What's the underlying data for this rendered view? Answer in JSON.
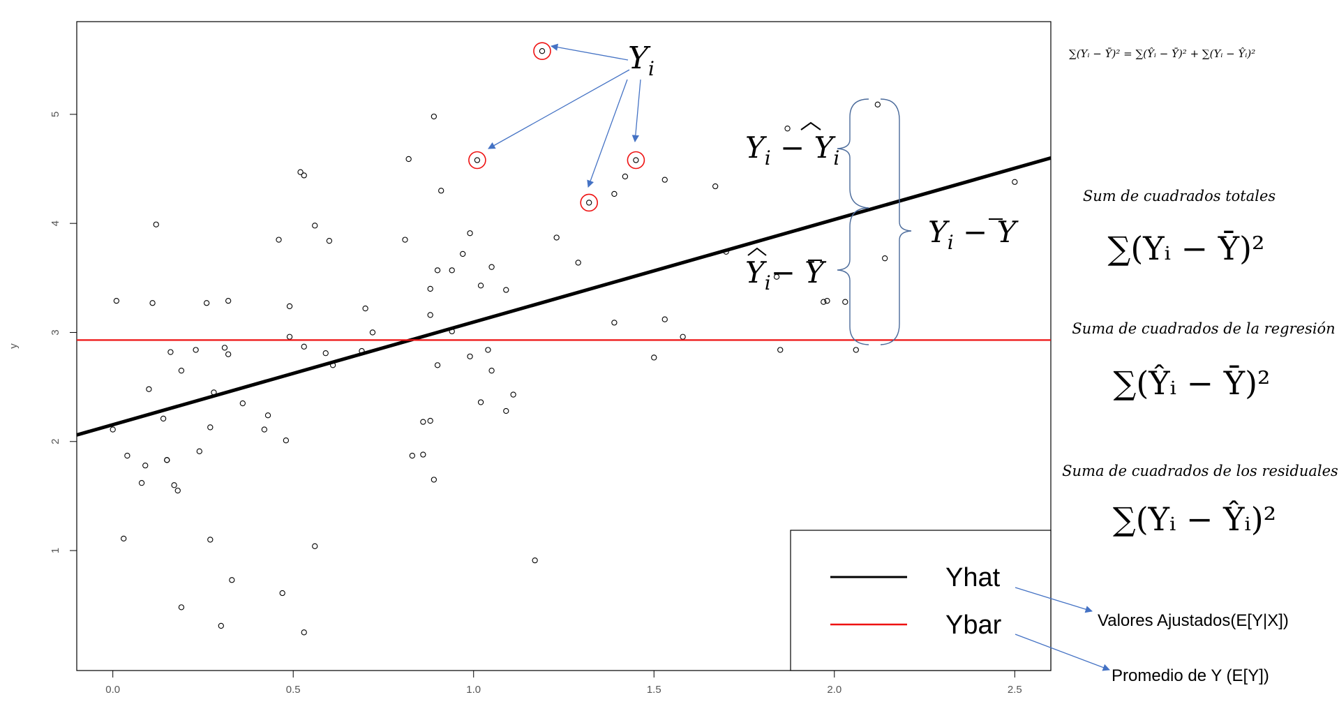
{
  "chart_data": {
    "type": "scatter",
    "ylabel": "y",
    "xlim": [
      -0.1,
      2.6
    ],
    "ylim": [
      -0.1,
      5.85
    ],
    "x_ticks": [
      0.0,
      0.5,
      1.0,
      1.5,
      2.0,
      2.5
    ],
    "x_tick_labels": [
      "0.0",
      "0.5",
      "1.0",
      "1.5",
      "2.0",
      "2.5"
    ],
    "y_ticks": [
      1,
      2,
      3,
      4,
      5
    ],
    "y_tick_labels": [
      "1",
      "2",
      "3",
      "4",
      "5"
    ],
    "points": [
      [
        1.19,
        5.58
      ],
      [
        0.89,
        4.98
      ],
      [
        2.12,
        5.09
      ],
      [
        1.87,
        4.87
      ],
      [
        0.82,
        4.59
      ],
      [
        1.01,
        4.58
      ],
      [
        1.45,
        4.58
      ],
      [
        0.52,
        4.47
      ],
      [
        0.53,
        4.44
      ],
      [
        1.42,
        4.43
      ],
      [
        1.53,
        4.4
      ],
      [
        1.67,
        4.34
      ],
      [
        0.91,
        4.3
      ],
      [
        1.39,
        4.27
      ],
      [
        1.32,
        4.19
      ],
      [
        2.5,
        4.38
      ],
      [
        0.12,
        3.99
      ],
      [
        0.56,
        3.98
      ],
      [
        0.99,
        3.91
      ],
      [
        1.23,
        3.87
      ],
      [
        0.81,
        3.85
      ],
      [
        0.46,
        3.85
      ],
      [
        0.6,
        3.84
      ],
      [
        1.7,
        3.74
      ],
      [
        0.97,
        3.72
      ],
      [
        1.29,
        3.64
      ],
      [
        1.05,
        3.6
      ],
      [
        0.9,
        3.57
      ],
      [
        0.94,
        3.57
      ],
      [
        2.14,
        3.68
      ],
      [
        1.02,
        3.43
      ],
      [
        0.88,
        3.4
      ],
      [
        1.09,
        3.39
      ],
      [
        1.84,
        3.51
      ],
      [
        0.01,
        3.29
      ],
      [
        0.11,
        3.27
      ],
      [
        0.26,
        3.27
      ],
      [
        0.32,
        3.29
      ],
      [
        0.49,
        3.24
      ],
      [
        0.7,
        3.22
      ],
      [
        1.97,
        3.28
      ],
      [
        1.98,
        3.29
      ],
      [
        2.03,
        3.28
      ],
      [
        0.88,
        3.16
      ],
      [
        1.53,
        3.12
      ],
      [
        1.39,
        3.09
      ],
      [
        0.72,
        3.0
      ],
      [
        0.94,
        3.01
      ],
      [
        0.49,
        2.96
      ],
      [
        1.58,
        2.96
      ],
      [
        0.53,
        2.87
      ],
      [
        0.31,
        2.86
      ],
      [
        0.16,
        2.82
      ],
      [
        0.23,
        2.84
      ],
      [
        0.32,
        2.8
      ],
      [
        0.59,
        2.81
      ],
      [
        0.69,
        2.83
      ],
      [
        1.04,
        2.84
      ],
      [
        1.85,
        2.84
      ],
      [
        2.06,
        2.84
      ],
      [
        0.99,
        2.78
      ],
      [
        1.5,
        2.77
      ],
      [
        0.61,
        2.7
      ],
      [
        0.9,
        2.7
      ],
      [
        1.05,
        2.65
      ],
      [
        0.19,
        2.65
      ],
      [
        0.1,
        2.48
      ],
      [
        0.28,
        2.45
      ],
      [
        1.11,
        2.43
      ],
      [
        0.14,
        2.21
      ],
      [
        1.02,
        2.36
      ],
      [
        0.36,
        2.35
      ],
      [
        1.09,
        2.28
      ],
      [
        0.43,
        2.24
      ],
      [
        0.86,
        2.18
      ],
      [
        0.88,
        2.19
      ],
      [
        0.0,
        2.11
      ],
      [
        0.42,
        2.11
      ],
      [
        0.27,
        2.13
      ],
      [
        0.48,
        2.01
      ],
      [
        0.04,
        1.87
      ],
      [
        0.24,
        1.91
      ],
      [
        0.83,
        1.87
      ],
      [
        0.86,
        1.88
      ],
      [
        0.15,
        1.83
      ],
      [
        0.15,
        1.83
      ],
      [
        0.09,
        1.78
      ],
      [
        0.08,
        1.62
      ],
      [
        0.17,
        1.6
      ],
      [
        0.18,
        1.55
      ],
      [
        0.89,
        1.65
      ],
      [
        0.03,
        1.11
      ],
      [
        0.27,
        1.1
      ],
      [
        0.56,
        1.04
      ],
      [
        1.17,
        0.91
      ],
      [
        0.33,
        0.73
      ],
      [
        0.47,
        0.61
      ],
      [
        0.19,
        0.48
      ],
      [
        0.3,
        0.31
      ],
      [
        0.53,
        0.25
      ]
    ],
    "highlighted_points": [
      [
        1.19,
        5.58
      ],
      [
        1.01,
        4.58
      ],
      [
        1.32,
        4.19
      ],
      [
        1.45,
        4.58
      ]
    ],
    "series": [
      {
        "name": "Yhat",
        "type": "line",
        "color": "#000000",
        "x": [
          -0.1,
          2.6
        ],
        "y": [
          2.06,
          4.6
        ]
      },
      {
        "name": "Ybar",
        "type": "line",
        "color": "#ee1111",
        "x": [
          -0.1,
          2.6
        ],
        "y": [
          2.93,
          2.93
        ]
      }
    ],
    "legend": {
      "placement": "bottom-right",
      "entries": [
        "Yhat",
        "Ybar"
      ]
    },
    "grid": false
  },
  "annotations": {
    "yi": "Y",
    "yi_sub": "i",
    "resid_label": "Y",
    "resid_sub": "i",
    "resid_minus": " − ",
    "resid_hat": "Y",
    "resid_hat_sub": "i",
    "total_label": "Y",
    "total_sub": "i",
    "total_minus": " − ",
    "total_bar": "Y",
    "reg_hat": "Y",
    "reg_sub": "i",
    "reg_minus": "− ",
    "reg_bar": "Y",
    "top_formula": "∑(Yᵢ − Ȳ)² = ∑(Ŷᵢ − Ȳ)² + ∑(Yᵢ − Ŷᵢ)²",
    "sst_title": "Sum de cuadrados totales",
    "sst_formula": "∑(Yᵢ − Ȳ)²",
    "ssr_title": "Suma de cuadrados de la regresión",
    "ssr_formula": "∑(Ŷᵢ − Ȳ)²",
    "sse_title": "Suma de cuadrados de los residuales",
    "sse_formula": "∑(Yᵢ − Ŷᵢ)²",
    "fitted_note": "Valores Ajustados(E[Y|X])",
    "mean_note": "Promedio de Y (E[Y])"
  },
  "colors": {
    "fit_line": "#000000",
    "mean_line": "#ee1111",
    "arrow": "#4472c4",
    "highlight": "#ee1111",
    "brace": "#4a6a9a"
  }
}
